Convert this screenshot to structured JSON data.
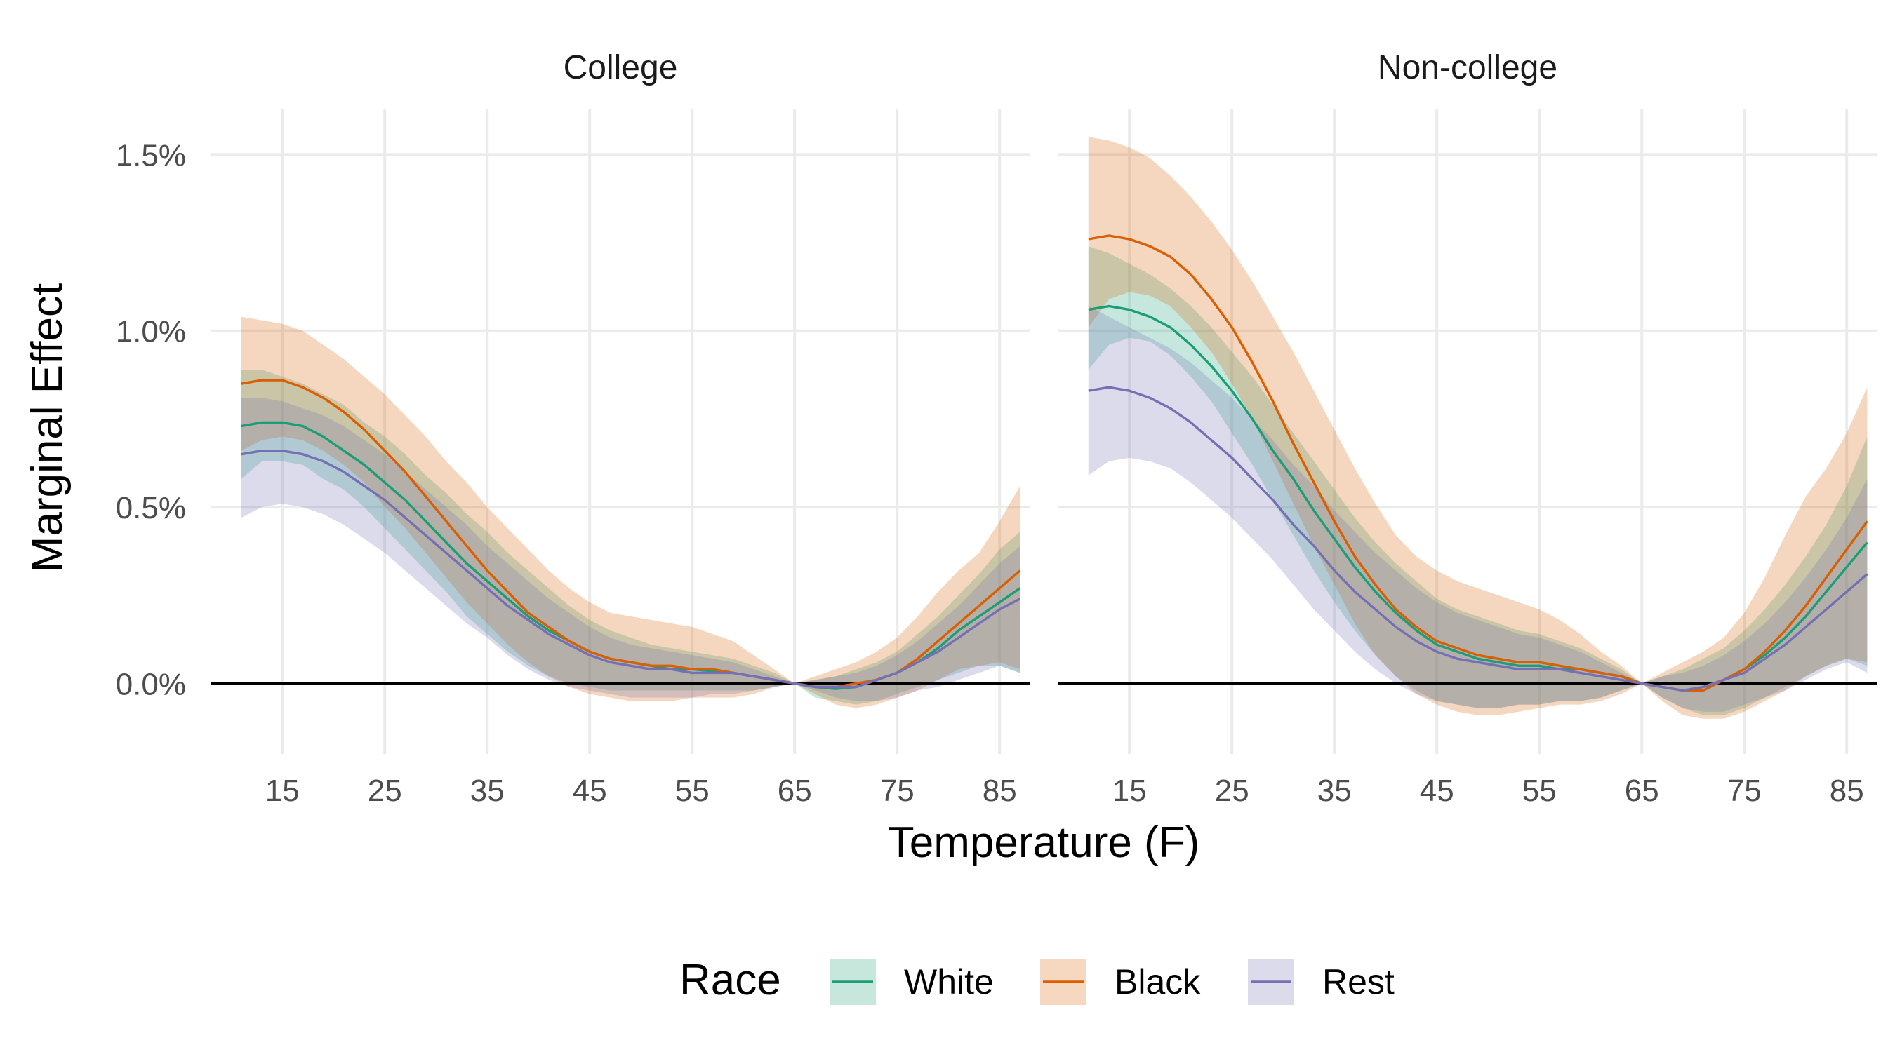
{
  "chart_data": {
    "type": "line",
    "xlabel": "Temperature (F)",
    "ylabel": "Marginal Effect",
    "xlim": [
      8,
      88
    ],
    "ylim": [
      -0.002,
      0.0163
    ],
    "x_ticks": [
      15,
      25,
      35,
      45,
      55,
      65,
      75,
      85
    ],
    "y_ticks": [
      0,
      0.005,
      0.01,
      0.015
    ],
    "y_tick_labels": [
      "0.0%",
      "0.5%",
      "1.0%",
      "1.5%"
    ],
    "grid": true,
    "legend": {
      "title": "Race",
      "placement": "bottom"
    },
    "reference_line": {
      "y": 0
    },
    "x": [
      11,
      13,
      15,
      17,
      19,
      21,
      23,
      25,
      27,
      29,
      31,
      33,
      35,
      37,
      39,
      41,
      43,
      45,
      47,
      49,
      51,
      53,
      55,
      57,
      59,
      61,
      63,
      65,
      67,
      69,
      71,
      73,
      75,
      77,
      79,
      81,
      83,
      85,
      87
    ],
    "series_colors": {
      "White": "#1b9e77",
      "Black": "#d95f02",
      "Rest": "#7570b3"
    },
    "band_fill_colors": {
      "White": "#c7e7dd",
      "Black": "#f6d7c0",
      "Rest": "#dcdbec"
    },
    "panels": [
      {
        "label": "College",
        "series": [
          {
            "name": "White",
            "values": [
              0.0073,
              0.0074,
              0.0074,
              0.0073,
              0.007,
              0.0066,
              0.0062,
              0.0057,
              0.0052,
              0.0046,
              0.004,
              0.0034,
              0.0029,
              0.0024,
              0.0019,
              0.0015,
              0.0012,
              0.0009,
              0.0007,
              0.0006,
              0.0005,
              0.0004,
              0.0004,
              0.00035,
              0.0003,
              0.0002,
              0.0001,
              0.0,
              -0.0001,
              -0.00015,
              -0.0001,
              0.0001,
              0.0003,
              0.0006,
              0.001,
              0.0015,
              0.0019,
              0.0023,
              0.0027
            ],
            "lower": [
              0.0058,
              0.0063,
              0.0063,
              0.0062,
              0.0058,
              0.0055,
              0.005,
              0.0044,
              0.0038,
              0.0032,
              0.0026,
              0.0019,
              0.0014,
              0.0009,
              0.0005,
              0.0002,
              0.0,
              -0.0001,
              -0.0002,
              -0.0002,
              -0.0002,
              -0.0002,
              -0.0002,
              -0.0002,
              -0.0002,
              -0.0002,
              -0.0001,
              0.0,
              -0.0004,
              -0.0005,
              -0.0006,
              -0.0005,
              -0.0003,
              -0.0001,
              0.0001,
              0.0003,
              0.0005,
              0.0005,
              0.0003
            ],
            "upper": [
              0.0089,
              0.0089,
              0.0087,
              0.0085,
              0.0082,
              0.0079,
              0.0074,
              0.007,
              0.0065,
              0.0059,
              0.0054,
              0.0048,
              0.0043,
              0.0037,
              0.0032,
              0.0027,
              0.0022,
              0.0018,
              0.0015,
              0.0013,
              0.0011,
              0.001,
              0.0009,
              0.0008,
              0.0007,
              0.0005,
              0.0003,
              0.0,
              0.0001,
              0.0002,
              0.0004,
              0.0006,
              0.0009,
              0.0014,
              0.0019,
              0.0025,
              0.0031,
              0.0038,
              0.0043
            ]
          },
          {
            "name": "Black",
            "values": [
              0.0085,
              0.0086,
              0.0086,
              0.0084,
              0.0081,
              0.0077,
              0.0072,
              0.0066,
              0.006,
              0.0053,
              0.0046,
              0.0039,
              0.0032,
              0.0026,
              0.002,
              0.0016,
              0.0012,
              0.0009,
              0.0007,
              0.0006,
              0.0005,
              0.0005,
              0.0004,
              0.0004,
              0.0003,
              0.0002,
              0.0001,
              0.0,
              -0.0001,
              -0.0001,
              0.0,
              0.0001,
              0.0003,
              0.0007,
              0.0012,
              0.0017,
              0.0022,
              0.0027,
              0.0032
            ],
            "lower": [
              0.0066,
              0.0069,
              0.007,
              0.0069,
              0.0066,
              0.0062,
              0.0057,
              0.005,
              0.0044,
              0.0037,
              0.003,
              0.0023,
              0.0017,
              0.0011,
              0.0006,
              0.0002,
              -0.0001,
              -0.0003,
              -0.0004,
              -0.0005,
              -0.0005,
              -0.0005,
              -0.0004,
              -0.0004,
              -0.0004,
              -0.0003,
              -0.0001,
              0.0,
              -0.0003,
              -0.0006,
              -0.0007,
              -0.0006,
              -0.0004,
              -0.0002,
              0.0001,
              0.0004,
              0.0005,
              0.0006,
              0.0004
            ],
            "upper": [
              0.0104,
              0.0103,
              0.0102,
              0.01,
              0.0096,
              0.0092,
              0.0087,
              0.0082,
              0.0076,
              0.007,
              0.0063,
              0.0057,
              0.005,
              0.0044,
              0.0038,
              0.0032,
              0.0027,
              0.0023,
              0.002,
              0.0019,
              0.0018,
              0.0017,
              0.0016,
              0.0014,
              0.0012,
              0.0008,
              0.0004,
              0.0,
              0.0002,
              0.0004,
              0.0006,
              0.0009,
              0.0013,
              0.0019,
              0.0026,
              0.0032,
              0.0037,
              0.0046,
              0.0056
            ]
          },
          {
            "name": "Rest",
            "values": [
              0.0065,
              0.0066,
              0.0066,
              0.0065,
              0.0063,
              0.006,
              0.0056,
              0.0052,
              0.0047,
              0.0042,
              0.0037,
              0.0032,
              0.0027,
              0.0022,
              0.0018,
              0.0014,
              0.0011,
              0.0008,
              0.0006,
              0.0005,
              0.0004,
              0.0004,
              0.0003,
              0.0003,
              0.0003,
              0.0002,
              0.0001,
              0.0,
              -0.0001,
              -0.0001,
              -0.0001,
              0.0001,
              0.0003,
              0.0006,
              0.0009,
              0.0013,
              0.0017,
              0.0021,
              0.0024
            ],
            "lower": [
              0.0047,
              0.005,
              0.0051,
              0.005,
              0.0048,
              0.0045,
              0.0041,
              0.0037,
              0.0032,
              0.0027,
              0.0022,
              0.0017,
              0.0013,
              0.0008,
              0.0004,
              0.0001,
              -0.0001,
              -0.0002,
              -0.0003,
              -0.0004,
              -0.0004,
              -0.0004,
              -0.0004,
              -0.0003,
              -0.0003,
              -0.0002,
              -0.0001,
              0.0,
              -0.0002,
              -0.0004,
              -0.0005,
              -0.0005,
              -0.0004,
              -0.0002,
              -0.0001,
              0.0001,
              0.0003,
              0.0005,
              0.0003
            ],
            "upper": [
              0.0081,
              0.0081,
              0.008,
              0.0078,
              0.0076,
              0.0073,
              0.0069,
              0.0065,
              0.006,
              0.0055,
              0.005,
              0.0045,
              0.0039,
              0.0034,
              0.0029,
              0.0024,
              0.002,
              0.0016,
              0.0013,
              0.0011,
              0.001,
              0.0009,
              0.0008,
              0.0007,
              0.0006,
              0.0004,
              0.0002,
              0.0,
              0.0001,
              0.0002,
              0.0003,
              0.0005,
              0.0008,
              0.0012,
              0.0017,
              0.0022,
              0.0028,
              0.0034,
              0.0039
            ]
          }
        ]
      },
      {
        "label": "Non-college",
        "series": [
          {
            "name": "White",
            "values": [
              0.0106,
              0.0107,
              0.0106,
              0.0104,
              0.0101,
              0.0096,
              0.009,
              0.0083,
              0.0075,
              0.0066,
              0.0058,
              0.0049,
              0.0041,
              0.0033,
              0.0026,
              0.002,
              0.0015,
              0.0011,
              0.0009,
              0.0007,
              0.0006,
              0.0005,
              0.0005,
              0.0004,
              0.0004,
              0.0003,
              0.0002,
              0.0,
              -0.0001,
              -0.0002,
              -0.0001,
              0.0001,
              0.0004,
              0.0008,
              0.0013,
              0.0019,
              0.0026,
              0.0033,
              0.004
            ],
            "lower": [
              0.0089,
              0.0096,
              0.0098,
              0.0097,
              0.0093,
              0.0087,
              0.008,
              0.0071,
              0.0062,
              0.0052,
              0.0042,
              0.0032,
              0.0023,
              0.0015,
              0.0008,
              0.0002,
              -0.0002,
              -0.0005,
              -0.0006,
              -0.0007,
              -0.0007,
              -0.0006,
              -0.0006,
              -0.0005,
              -0.0005,
              -0.0004,
              -0.0002,
              0.0,
              -0.0004,
              -0.0007,
              -0.0009,
              -0.0009,
              -0.0007,
              -0.0004,
              -0.0001,
              0.0002,
              0.0005,
              0.0007,
              0.0005
            ],
            "upper": [
              0.0124,
              0.0122,
              0.0119,
              0.0116,
              0.0112,
              0.0107,
              0.0101,
              0.0094,
              0.0087,
              0.0079,
              0.0071,
              0.0063,
              0.0055,
              0.0047,
              0.004,
              0.0034,
              0.0029,
              0.0024,
              0.0021,
              0.0019,
              0.0017,
              0.0015,
              0.0014,
              0.0012,
              0.001,
              0.0007,
              0.0004,
              0.0,
              0.0002,
              0.0004,
              0.0007,
              0.001,
              0.0015,
              0.0021,
              0.0028,
              0.0036,
              0.0045,
              0.0056,
              0.007
            ]
          },
          {
            "name": "Black",
            "values": [
              0.0126,
              0.0127,
              0.0126,
              0.0124,
              0.0121,
              0.0116,
              0.0109,
              0.0101,
              0.0091,
              0.008,
              0.0068,
              0.0057,
              0.0046,
              0.0036,
              0.0028,
              0.0021,
              0.0016,
              0.0012,
              0.001,
              0.0008,
              0.0007,
              0.0006,
              0.0006,
              0.0005,
              0.0004,
              0.0003,
              0.0002,
              0.0,
              -0.0001,
              -0.0002,
              -0.0002,
              0.0001,
              0.0004,
              0.0009,
              0.0015,
              0.0022,
              0.003,
              0.0038,
              0.0046
            ],
            "lower": [
              0.0101,
              0.0109,
              0.0111,
              0.011,
              0.0107,
              0.0101,
              0.0094,
              0.0085,
              0.0075,
              0.0063,
              0.0051,
              0.0039,
              0.0028,
              0.0017,
              0.0008,
              0.0002,
              -0.0003,
              -0.0006,
              -0.0008,
              -0.0009,
              -0.0009,
              -0.0008,
              -0.0007,
              -0.0006,
              -0.0006,
              -0.0005,
              -0.0003,
              0.0,
              -0.0005,
              -0.0009,
              -0.001,
              -0.001,
              -0.0008,
              -0.0005,
              -0.0002,
              0.0002,
              0.0005,
              0.0007,
              0.0006
            ],
            "upper": [
              0.0155,
              0.0154,
              0.0152,
              0.0149,
              0.0144,
              0.0138,
              0.0131,
              0.0123,
              0.0114,
              0.0104,
              0.0094,
              0.0083,
              0.0072,
              0.0061,
              0.0051,
              0.0042,
              0.0036,
              0.0032,
              0.0029,
              0.0027,
              0.0025,
              0.0023,
              0.0021,
              0.0018,
              0.0014,
              0.0009,
              0.0005,
              0.0,
              0.0003,
              0.0006,
              0.0009,
              0.0013,
              0.002,
              0.003,
              0.0042,
              0.0053,
              0.0061,
              0.0071,
              0.0084
            ]
          },
          {
            "name": "Rest",
            "values": [
              0.0083,
              0.0084,
              0.0083,
              0.0081,
              0.0078,
              0.0074,
              0.0069,
              0.0064,
              0.0058,
              0.0052,
              0.0045,
              0.0039,
              0.0032,
              0.0026,
              0.0021,
              0.0016,
              0.0012,
              0.0009,
              0.0007,
              0.0006,
              0.0005,
              0.0004,
              0.0004,
              0.0004,
              0.0003,
              0.0002,
              0.0001,
              0.0,
              -0.0001,
              -0.0002,
              -0.0001,
              0.0001,
              0.0003,
              0.0007,
              0.0011,
              0.0016,
              0.0021,
              0.0026,
              0.0031
            ],
            "lower": [
              0.0059,
              0.0063,
              0.0064,
              0.0063,
              0.0061,
              0.0057,
              0.0052,
              0.0047,
              0.0041,
              0.0035,
              0.0028,
              0.0021,
              0.0015,
              0.0009,
              0.0004,
              0.0,
              -0.0003,
              -0.0005,
              -0.0006,
              -0.0007,
              -0.0007,
              -0.0006,
              -0.0006,
              -0.0005,
              -0.0005,
              -0.0004,
              -0.0002,
              0.0,
              -0.0004,
              -0.0007,
              -0.0008,
              -0.0008,
              -0.0006,
              -0.0004,
              -0.0002,
              0.0001,
              0.0004,
              0.0006,
              0.0003
            ],
            "upper": [
              0.0107,
              0.0104,
              0.0101,
              0.0098,
              0.0095,
              0.0091,
              0.0086,
              0.0081,
              0.0075,
              0.0069,
              0.0062,
              0.0056,
              0.0049,
              0.0043,
              0.0037,
              0.0032,
              0.0027,
              0.0023,
              0.002,
              0.0018,
              0.0016,
              0.0014,
              0.0013,
              0.0011,
              0.0009,
              0.0006,
              0.0003,
              0.0,
              0.0002,
              0.0003,
              0.0005,
              0.0008,
              0.0012,
              0.0017,
              0.0023,
              0.003,
              0.0038,
              0.0047,
              0.0058
            ]
          }
        ]
      }
    ]
  }
}
